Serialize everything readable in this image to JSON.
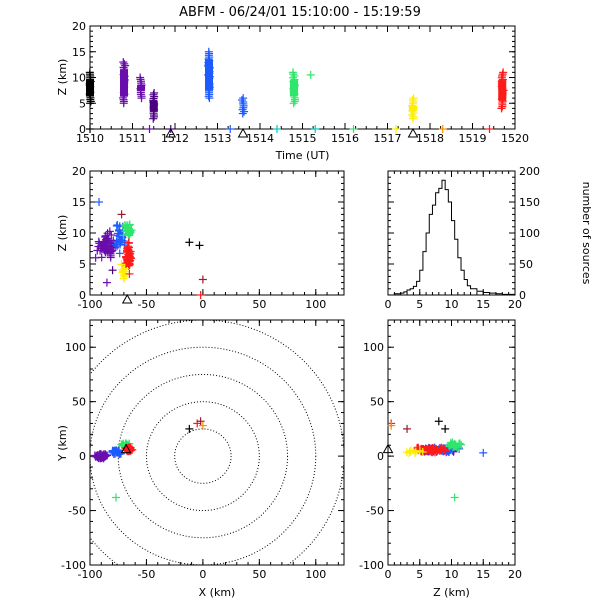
{
  "title": "ABFM - 06/24/01 15:10:00 - 15:19:59",
  "colors": {
    "black": "#000000",
    "purple": "#6a0dad",
    "darkpurple": "#4b0082",
    "blue": "#1e5bff",
    "cyan": "#00c8c8",
    "green": "#2ee66a",
    "yellow": "#ffee00",
    "orange": "#ff8c00",
    "red": "#ff1a1a",
    "brown": "#9b1b30"
  },
  "chart_data": [
    {
      "id": "time_height",
      "type": "scatter",
      "xlabel": "Time (UT)",
      "ylabel": "Z (km)",
      "xlim": [
        1510,
        1520
      ],
      "ylim": [
        0,
        20
      ],
      "xticks": [
        "1510",
        "1511",
        "1512",
        "1513",
        "1514",
        "1515",
        "1516",
        "1517",
        "1518",
        "1519",
        "1520"
      ],
      "yticks": [
        "0",
        "5",
        "10",
        "15",
        "20"
      ],
      "clusters": [
        {
          "t": 1510.0,
          "zmin": 5,
          "zmax": 11,
          "color": "black"
        },
        {
          "t": 1510.8,
          "zmin": 5,
          "zmax": 13,
          "color": "purple"
        },
        {
          "t": 1511.2,
          "zmin": 6,
          "zmax": 10,
          "color": "purple"
        },
        {
          "t": 1511.5,
          "zmin": 2,
          "zmax": 7,
          "color": "darkpurple"
        },
        {
          "t": 1512.8,
          "zmin": 6,
          "zmax": 15,
          "color": "blue"
        },
        {
          "t": 1513.6,
          "zmin": 3,
          "zmax": 6,
          "color": "blue"
        },
        {
          "t": 1514.8,
          "zmin": 5,
          "zmax": 11,
          "color": "green"
        },
        {
          "t": 1515.2,
          "zmin": 10.5,
          "zmax": 10.5,
          "color": "green"
        },
        {
          "t": 1517.6,
          "zmin": 2,
          "zmax": 6,
          "color": "yellow"
        },
        {
          "t": 1519.7,
          "zmin": 4,
          "zmax": 11,
          "color": "red"
        }
      ],
      "ground_marks": [
        {
          "t": 1510.0,
          "color": "black"
        },
        {
          "t": 1511.4,
          "color": "purple"
        },
        {
          "t": 1511.9,
          "color": "darkpurple"
        },
        {
          "t": 1513.3,
          "color": "blue"
        },
        {
          "t": 1514.4,
          "color": "cyan"
        },
        {
          "t": 1515.3,
          "color": "cyan"
        },
        {
          "t": 1516.2,
          "color": "green"
        },
        {
          "t": 1517.2,
          "color": "yellow"
        },
        {
          "t": 1518.3,
          "color": "orange"
        },
        {
          "t": 1519.4,
          "color": "red"
        }
      ],
      "triangles": [
        1511.9,
        1513.6,
        1517.6
      ]
    },
    {
      "id": "x_height",
      "type": "scatter",
      "xlim": [
        -100,
        125
      ],
      "ylim": [
        0,
        20
      ],
      "ylabel": "Z (km)",
      "xticks": [
        "-100",
        "-50",
        "0",
        "50",
        "100"
      ],
      "yticks": [
        "0",
        "5",
        "10",
        "15",
        "20"
      ],
      "points": [
        {
          "x": -92,
          "z": 15,
          "color": "blue"
        },
        {
          "x": -72,
          "z": 13,
          "color": "brown"
        },
        {
          "x": -90,
          "z": 8,
          "color": "purple"
        },
        {
          "x": -95,
          "z": 6,
          "color": "purple"
        },
        {
          "x": -80,
          "z": 4,
          "color": "darkpurple"
        },
        {
          "x": -85,
          "z": 2,
          "color": "purple"
        },
        {
          "x": -12,
          "z": 8.5,
          "color": "black"
        },
        {
          "x": -3,
          "z": 8,
          "color": "black"
        },
        {
          "x": 0,
          "z": 2.5,
          "color": "brown"
        },
        {
          "x": -2,
          "z": 0,
          "color": "red"
        }
      ],
      "blobs": [
        {
          "cx": -85,
          "cz": 8,
          "rx": 9,
          "rz": 3,
          "color": "purple",
          "n": 60
        },
        {
          "cx": -73,
          "cz": 9,
          "rx": 6,
          "rz": 3,
          "color": "blue",
          "n": 30
        },
        {
          "cx": -66,
          "cz": 10.5,
          "rx": 5,
          "rz": 1.5,
          "color": "green",
          "n": 30
        },
        {
          "cx": -66,
          "cz": 6,
          "rx": 4,
          "rz": 3,
          "color": "red",
          "n": 50
        },
        {
          "cx": -70,
          "cz": 4,
          "rx": 3,
          "rz": 2,
          "color": "yellow",
          "n": 10
        }
      ],
      "triangle_x": -67
    },
    {
      "id": "histogram",
      "type": "line",
      "ylabel": "number of sources",
      "xlim": [
        0,
        20
      ],
      "ylim": [
        0,
        200
      ],
      "xticks": [
        "0",
        "5",
        "10",
        "15",
        "20"
      ],
      "yticks": [
        "0",
        "50",
        "100",
        "150",
        "200"
      ],
      "x": [
        1,
        2,
        2.5,
        3,
        3.5,
        4,
        4.5,
        5,
        5.5,
        6,
        6.5,
        7,
        7.5,
        8,
        8.5,
        9,
        9.5,
        10,
        10.5,
        11,
        11.5,
        12,
        12.5,
        13,
        14,
        15,
        16,
        17,
        18,
        19,
        20
      ],
      "values": [
        2,
        3,
        5,
        8,
        10,
        14,
        22,
        40,
        70,
        100,
        130,
        145,
        165,
        172,
        185,
        170,
        150,
        120,
        90,
        60,
        40,
        25,
        15,
        10,
        6,
        4,
        3,
        2,
        1,
        1,
        0
      ]
    },
    {
      "id": "plan_view",
      "type": "scatter",
      "xlabel": "X (km)",
      "ylabel": "Y (km)",
      "xlim": [
        -100,
        125
      ],
      "ylim": [
        -100,
        125
      ],
      "xticks": [
        "-100",
        "-50",
        "0",
        "50",
        "100"
      ],
      "yticks": [
        "-100",
        "-50",
        "0",
        "50",
        "100"
      ],
      "rings": [
        25,
        50,
        75,
        100,
        125
      ],
      "points": [
        {
          "x": -12,
          "y": 25,
          "color": "black"
        },
        {
          "x": -5,
          "y": 30,
          "color": "red"
        },
        {
          "x": -2,
          "y": 32,
          "color": "brown"
        },
        {
          "x": 0,
          "y": 28,
          "color": "orange"
        },
        {
          "x": -77,
          "y": -38,
          "color": "green"
        }
      ],
      "blobs": [
        {
          "cx": -90,
          "cy": 0,
          "rx": 8,
          "ry": 3,
          "color": "purple",
          "n": 45
        },
        {
          "cx": -77,
          "cy": 4,
          "rx": 6,
          "ry": 3,
          "color": "blue",
          "n": 30
        },
        {
          "cx": -68,
          "cy": 10,
          "rx": 5,
          "ry": 3,
          "color": "green",
          "n": 30
        },
        {
          "cx": -66,
          "cy": 6,
          "rx": 4,
          "ry": 3,
          "color": "red",
          "n": 50
        }
      ],
      "triangle": {
        "x": -68,
        "y": 6
      }
    },
    {
      "id": "z_y",
      "type": "scatter",
      "xlabel": "Z (km)",
      "xlim": [
        0,
        20
      ],
      "ylim": [
        -100,
        125
      ],
      "xticks": [
        "0",
        "5",
        "10",
        "15",
        "20"
      ],
      "yticks": [
        "-100",
        "-50",
        "0",
        "50",
        "100"
      ],
      "points": [
        {
          "z": 0.5,
          "y": 30,
          "color": "red"
        },
        {
          "z": 0.5,
          "y": 28,
          "color": "orange"
        },
        {
          "z": 3,
          "y": 25,
          "color": "brown"
        },
        {
          "z": 8,
          "y": 32,
          "color": "black"
        },
        {
          "z": 9,
          "y": 25,
          "color": "black"
        },
        {
          "z": 10.5,
          "y": -38,
          "color": "green"
        },
        {
          "z": 15,
          "y": 3,
          "color": "blue"
        }
      ],
      "blobs": [
        {
          "cz": 7,
          "cy": 5,
          "rz": 4.5,
          "ry": 3,
          "color": "purple",
          "n": 40
        },
        {
          "cz": 9,
          "cy": 6,
          "rz": 3,
          "ry": 4,
          "color": "blue",
          "n": 30
        },
        {
          "cz": 10.5,
          "cy": 10,
          "rz": 1.5,
          "ry": 4,
          "color": "green",
          "n": 25
        },
        {
          "cz": 6.5,
          "cy": 6,
          "rz": 3.5,
          "ry": 3,
          "color": "red",
          "n": 60
        },
        {
          "cz": 4,
          "cy": 4,
          "rz": 2,
          "ry": 2,
          "color": "yellow",
          "n": 10
        }
      ],
      "triangle": {
        "z": 0,
        "y": 6
      }
    }
  ]
}
